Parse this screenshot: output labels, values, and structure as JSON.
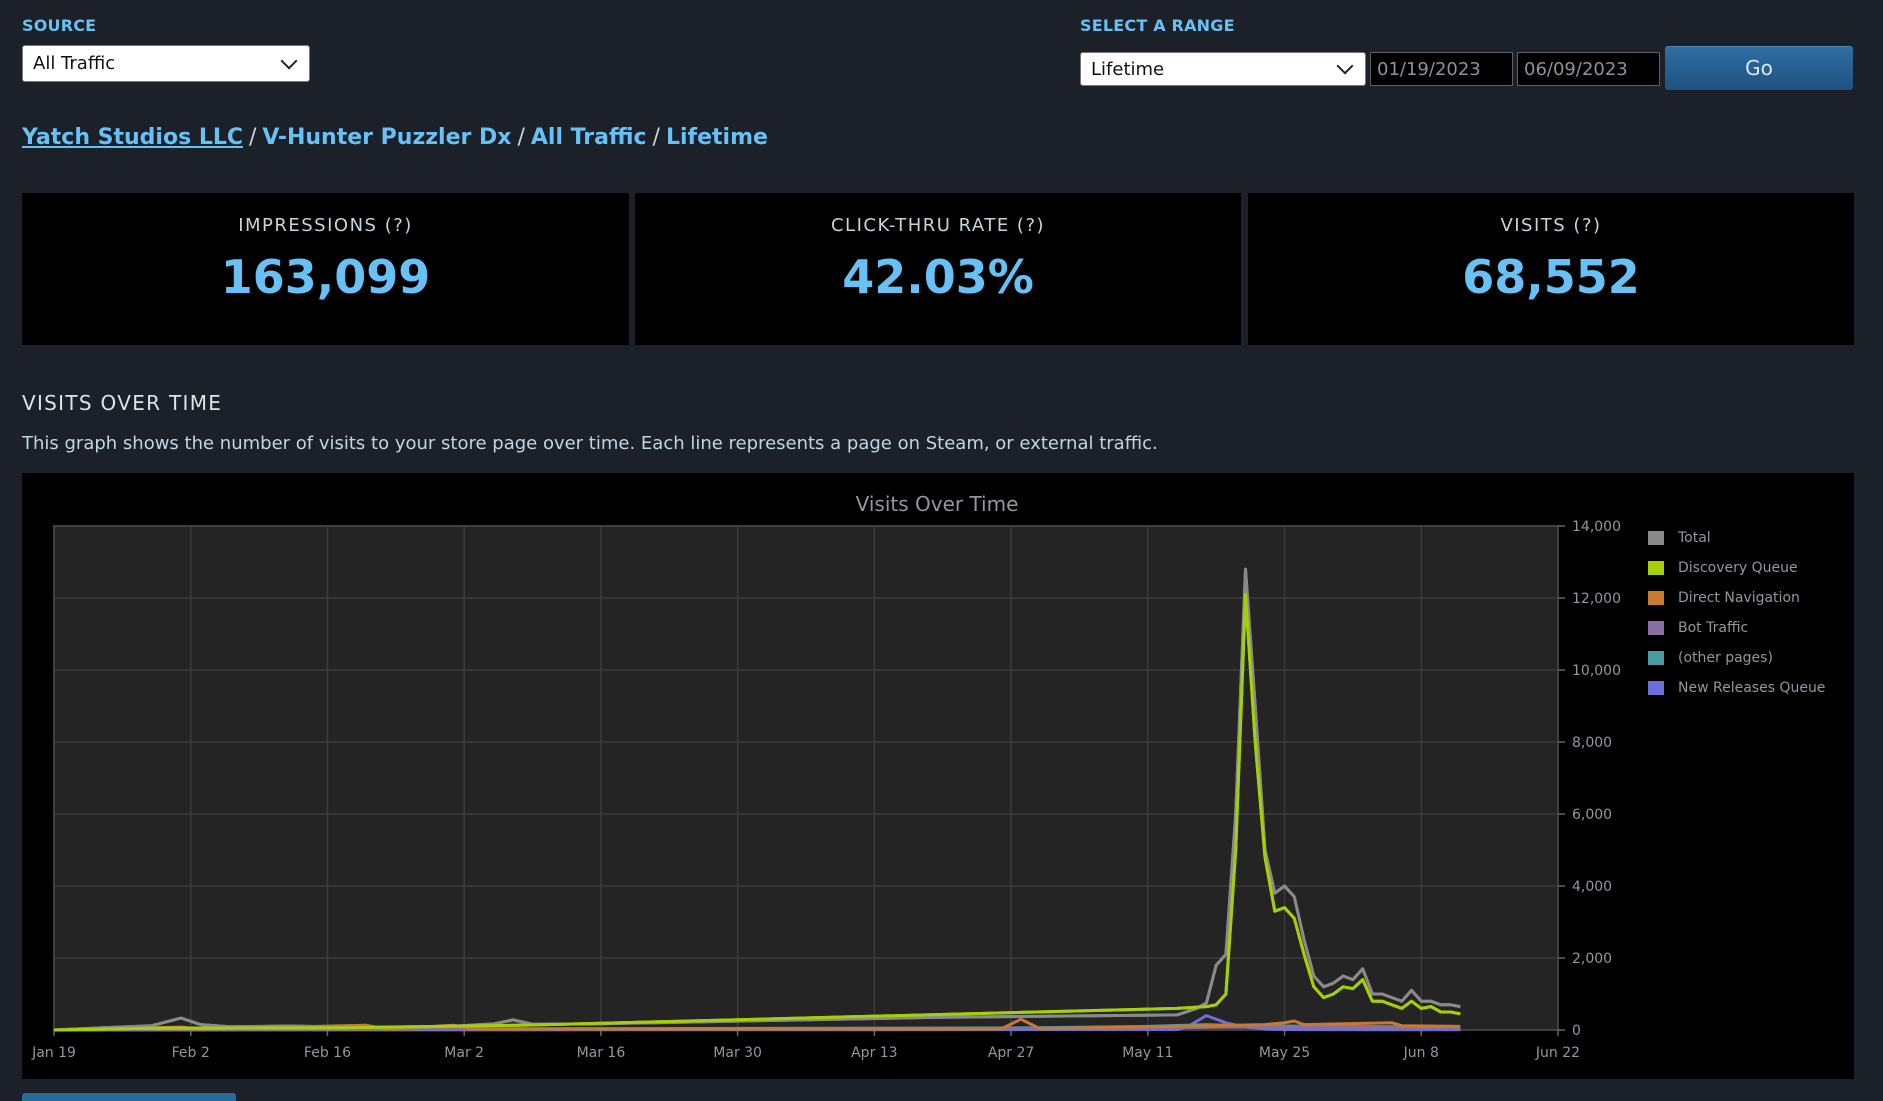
{
  "source": {
    "label": "SOURCE",
    "selected": "All Traffic"
  },
  "range": {
    "label": "SELECT A RANGE",
    "selected": "Lifetime",
    "start": "01/19/2023",
    "end": "06/09/2023",
    "go": "Go"
  },
  "breadcrumb": {
    "studio": "Yatch Studios LLC",
    "game": "V-Hunter Puzzler Dx",
    "traffic": "All Traffic",
    "period": "Lifetime",
    "sep": "/"
  },
  "stats": [
    {
      "title": "IMPRESSIONS (?)",
      "value": "163,099"
    },
    {
      "title": "CLICK-THRU RATE (?)",
      "value": "42.03%"
    },
    {
      "title": "VISITS (?)",
      "value": "68,552"
    }
  ],
  "section": {
    "title": "VISITS OVER TIME",
    "description": "This graph shows the number of visits to your store page over time. Each line represents a page on Steam, or external traffic."
  },
  "chart_data": {
    "type": "line",
    "title": "Visits Over Time",
    "xlabel": "",
    "ylabel": "",
    "x_ticks": [
      "Jan 19",
      "Feb 2",
      "Feb 16",
      "Mar 2",
      "Mar 16",
      "Mar 30",
      "Apr 13",
      "Apr 27",
      "May 11",
      "May 25",
      "Jun 8",
      "Jun 22"
    ],
    "x_domain_days": [
      0,
      154
    ],
    "y_ticks": [
      "0",
      "2,000",
      "4,000",
      "6,000",
      "8,000",
      "10,000",
      "12,000",
      "14,000"
    ],
    "ylim": [
      0,
      14000
    ],
    "grid": true,
    "legend_position": "right",
    "series": [
      {
        "name": "Total",
        "color": "#8a8a8a",
        "points": [
          [
            0,
            0
          ],
          [
            5,
            60
          ],
          [
            10,
            120
          ],
          [
            13,
            330
          ],
          [
            15,
            150
          ],
          [
            18,
            90
          ],
          [
            24,
            110
          ],
          [
            30,
            80
          ],
          [
            40,
            90
          ],
          [
            45,
            170
          ],
          [
            47,
            280
          ],
          [
            49,
            160
          ],
          [
            55,
            170
          ],
          [
            90,
            350
          ],
          [
            115,
            420
          ],
          [
            117,
            600
          ],
          [
            118,
            750
          ],
          [
            119,
            1800
          ],
          [
            120,
            2100
          ],
          [
            121,
            6000
          ],
          [
            122,
            12800
          ],
          [
            123,
            9000
          ],
          [
            124,
            5000
          ],
          [
            125,
            3800
          ],
          [
            126,
            4000
          ],
          [
            127,
            3700
          ],
          [
            128,
            2500
          ],
          [
            129,
            1500
          ],
          [
            130,
            1200
          ],
          [
            131,
            1300
          ],
          [
            132,
            1500
          ],
          [
            133,
            1400
          ],
          [
            134,
            1700
          ],
          [
            135,
            1000
          ],
          [
            136,
            1000
          ],
          [
            137,
            900
          ],
          [
            138,
            800
          ],
          [
            139,
            1100
          ],
          [
            140,
            800
          ],
          [
            141,
            800
          ],
          [
            142,
            700
          ],
          [
            143,
            700
          ],
          [
            144,
            650
          ]
        ]
      },
      {
        "name": "Discovery Queue",
        "color": "#a4d007",
        "points": [
          [
            0,
            0
          ],
          [
            10,
            50
          ],
          [
            30,
            60
          ],
          [
            49,
            140
          ],
          [
            115,
            600
          ],
          [
            118,
            650
          ],
          [
            119,
            700
          ],
          [
            120,
            1000
          ],
          [
            121,
            5000
          ],
          [
            122,
            12100
          ],
          [
            123,
            8000
          ],
          [
            124,
            4800
          ],
          [
            125,
            3300
          ],
          [
            126,
            3400
          ],
          [
            127,
            3100
          ],
          [
            128,
            2100
          ],
          [
            129,
            1200
          ],
          [
            130,
            900
          ],
          [
            131,
            1000
          ],
          [
            132,
            1200
          ],
          [
            133,
            1150
          ],
          [
            134,
            1400
          ],
          [
            135,
            800
          ],
          [
            136,
            800
          ],
          [
            137,
            700
          ],
          [
            138,
            600
          ],
          [
            139,
            800
          ],
          [
            140,
            600
          ],
          [
            141,
            650
          ],
          [
            142,
            500
          ],
          [
            143,
            500
          ],
          [
            144,
            450
          ]
        ]
      },
      {
        "name": "Direct Navigation",
        "color": "#c87a30",
        "points": [
          [
            0,
            0
          ],
          [
            13,
            80
          ],
          [
            15,
            30
          ],
          [
            32,
            130
          ],
          [
            34,
            30
          ],
          [
            41,
            130
          ],
          [
            43,
            30
          ],
          [
            97,
            30
          ],
          [
            99,
            300
          ],
          [
            101,
            30
          ],
          [
            124,
            150
          ],
          [
            126,
            200
          ],
          [
            127,
            250
          ],
          [
            128,
            150
          ],
          [
            137,
            200
          ],
          [
            138,
            120
          ],
          [
            144,
            100
          ]
        ]
      },
      {
        "name": "Bot Traffic",
        "color": "#8a6fa3",
        "points": [
          [
            0,
            0
          ],
          [
            40,
            20
          ],
          [
            80,
            30
          ],
          [
            115,
            60
          ],
          [
            120,
            80
          ],
          [
            144,
            60
          ]
        ]
      },
      {
        "name": "(other pages)",
        "color": "#4a9aa0",
        "points": [
          [
            0,
            0
          ],
          [
            60,
            40
          ],
          [
            100,
            60
          ],
          [
            112,
            100
          ],
          [
            118,
            150
          ],
          [
            122,
            120
          ],
          [
            130,
            100
          ],
          [
            144,
            80
          ]
        ]
      },
      {
        "name": "New Releases Queue",
        "color": "#6b6fd6",
        "points": [
          [
            0,
            0
          ],
          [
            115,
            10
          ],
          [
            116,
            80
          ],
          [
            118,
            400
          ],
          [
            119,
            300
          ],
          [
            120,
            200
          ],
          [
            122,
            80
          ],
          [
            124,
            30
          ],
          [
            126,
            10
          ],
          [
            144,
            5
          ]
        ]
      }
    ]
  }
}
